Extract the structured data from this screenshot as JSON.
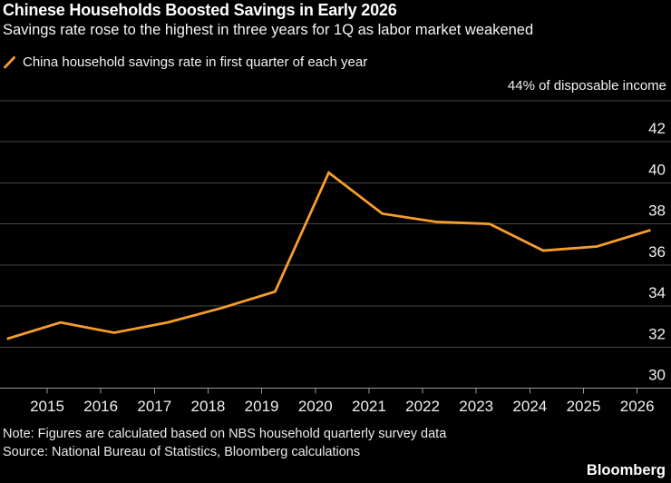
{
  "header": {
    "title": "Chinese Households Boosted Savings in Early 2026",
    "subtitle": "Savings rate rose to the highest in three years for 1Q as labor market weakened"
  },
  "legend": {
    "marker_icon": "orange-slash-line-marker",
    "label": "China household savings rate in first quarter of each year"
  },
  "chart_data": {
    "type": "line",
    "title": "Chinese Households Boosted Savings in Early 2026",
    "unit_label": "44% of disposable income",
    "x": [
      2014,
      2015,
      2016,
      2017,
      2018,
      2019,
      2020,
      2021,
      2022,
      2023,
      2024,
      2025,
      2026
    ],
    "series": [
      {
        "name": "China household savings rate in first quarter of each year",
        "values": [
          32.4,
          33.2,
          32.7,
          33.2,
          33.9,
          34.7,
          40.5,
          38.5,
          38.1,
          38.0,
          36.7,
          36.9,
          37.7
        ]
      }
    ],
    "xticks": [
      2015,
      2016,
      2017,
      2018,
      2019,
      2020,
      2021,
      2022,
      2023,
      2024,
      2025,
      2026
    ],
    "yticks": [
      30,
      32,
      34,
      36,
      38,
      40,
      42,
      44
    ],
    "ylim": [
      30,
      44
    ],
    "grid": "horizontal",
    "legend_position": "top-left",
    "point_offset_years": 0.25
  },
  "footer": {
    "note": "Note: Figures are calculated based on NBS household quarterly survey data",
    "source": "Source: National Bureau of Statistics, Bloomberg calculations",
    "brand": "Bloomberg"
  },
  "colors": {
    "background": "#000000",
    "text": "#FFFFFF",
    "accent": "#F79D2A",
    "gridline": "#464646",
    "axis": "#999999",
    "tick_label": "#F0F0F0"
  }
}
